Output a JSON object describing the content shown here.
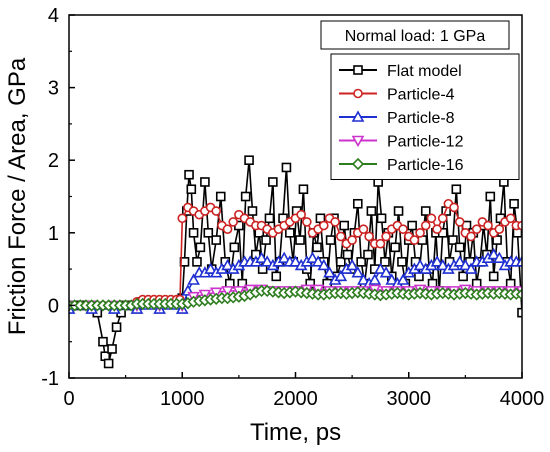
{
  "chart_data": {
    "type": "line",
    "title": "",
    "annotation": "Normal load: 1 GPa",
    "xlabel": "Time, ps",
    "ylabel": "Friction Force / Area, GPa",
    "xlim": [
      0,
      4000
    ],
    "ylim": [
      -1,
      4
    ],
    "x_ticks": [
      "0",
      "1000",
      "2000",
      "3000",
      "4000"
    ],
    "y_ticks": [
      "-1",
      "0",
      "1",
      "2",
      "3",
      "4"
    ],
    "x_tick_values": [
      0,
      1000,
      2000,
      3000,
      4000
    ],
    "y_tick_values": [
      -1,
      0,
      1,
      2,
      3,
      4
    ],
    "grid": false,
    "legend_position": "top-right",
    "series": [
      {
        "name": "Flat model",
        "color": "#000000",
        "marker": "square",
        "x": [
          0,
          50,
          100,
          150,
          200,
          250,
          300,
          320,
          350,
          380,
          420,
          460,
          500,
          550,
          600,
          650,
          700,
          750,
          800,
          850,
          900,
          950,
          980,
          1000,
          1020,
          1040,
          1060,
          1080,
          1100,
          1130,
          1160,
          1200,
          1230,
          1260,
          1300,
          1340,
          1380,
          1420,
          1460,
          1500,
          1530,
          1560,
          1590,
          1620,
          1650,
          1680,
          1710,
          1740,
          1770,
          1800,
          1830,
          1860,
          1890,
          1920,
          1950,
          1980,
          2010,
          2040,
          2070,
          2100,
          2130,
          2160,
          2190,
          2220,
          2250,
          2280,
          2310,
          2340,
          2370,
          2400,
          2430,
          2460,
          2490,
          2520,
          2550,
          2580,
          2610,
          2640,
          2670,
          2700,
          2730,
          2760,
          2790,
          2820,
          2850,
          2880,
          2910,
          2940,
          2970,
          3000,
          3030,
          3060,
          3090,
          3120,
          3150,
          3180,
          3210,
          3240,
          3270,
          3300,
          3330,
          3360,
          3390,
          3420,
          3450,
          3480,
          3510,
          3540,
          3570,
          3600,
          3630,
          3660,
          3690,
          3720,
          3750,
          3780,
          3810,
          3840,
          3870,
          3900,
          3930,
          3960,
          4000
        ],
        "values": [
          0,
          0,
          0,
          0,
          0,
          -0.1,
          -0.5,
          -0.7,
          -0.8,
          -0.6,
          -0.3,
          -0.1,
          0,
          0,
          0,
          0.05,
          0.05,
          0.05,
          0.05,
          0.05,
          0.05,
          0.05,
          0.05,
          0.1,
          0.6,
          1.3,
          1.8,
          1.6,
          1.0,
          0.6,
          0.8,
          1.7,
          1.0,
          0.5,
          0.9,
          1.5,
          0.6,
          0.3,
          0.8,
          1.1,
          0.3,
          1.5,
          2.0,
          1.3,
          0.7,
          1.0,
          0.5,
          0.9,
          1.2,
          1.7,
          0.4,
          0.6,
          1.2,
          1.9,
          1.0,
          0.6,
          1.3,
          0.9,
          1.6,
          0.5,
          0.3,
          1.0,
          0.8,
          1.2,
          0.6,
          0.3,
          0.9,
          1.2,
          0.4,
          0.6,
          1.1,
          0.7,
          0.5,
          1.0,
          1.4,
          0.6,
          0.3,
          0.7,
          1.3,
          0.5,
          1.7,
          1.2,
          0.6,
          1.0,
          0.4,
          0.8,
          1.3,
          0.6,
          0.3,
          0.9,
          1.1,
          0.6,
          0.4,
          0.9,
          1.3,
          0.5,
          0.3,
          1.0,
          0.2,
          1.0,
          1.3,
          0.6,
          0.9,
          1.6,
          0.8,
          0.4,
          1.1,
          0.6,
          1.0,
          0.3,
          0.6,
          1.1,
          0.7,
          1.5,
          0.4,
          0.9,
          1.2,
          1.7,
          0.6,
          0.3,
          1.4,
          1.0,
          -0.1
        ]
      },
      {
        "name": "Particle-4",
        "color": "#cc2222",
        "marker": "circle",
        "x": [
          0,
          100,
          200,
          300,
          400,
          500,
          600,
          650,
          700,
          750,
          800,
          850,
          900,
          950,
          980,
          1000,
          1050,
          1100,
          1150,
          1200,
          1250,
          1300,
          1350,
          1400,
          1450,
          1500,
          1550,
          1600,
          1650,
          1700,
          1750,
          1800,
          1850,
          1900,
          1950,
          2000,
          2050,
          2100,
          2150,
          2200,
          2250,
          2300,
          2350,
          2400,
          2450,
          2500,
          2550,
          2600,
          2650,
          2700,
          2750,
          2800,
          2850,
          2900,
          2950,
          3000,
          3050,
          3100,
          3150,
          3200,
          3250,
          3300,
          3350,
          3400,
          3450,
          3500,
          3550,
          3600,
          3650,
          3700,
          3750,
          3800,
          3850,
          3900,
          3950,
          4000
        ],
        "values": [
          0,
          0,
          0,
          0,
          0,
          0,
          0.05,
          0.08,
          0.08,
          0.08,
          0.08,
          0.08,
          0.08,
          0.08,
          0.08,
          1.2,
          1.35,
          1.3,
          1.25,
          1.3,
          1.35,
          1.3,
          1.1,
          1.05,
          1.15,
          1.25,
          1.2,
          1.15,
          1.1,
          1.1,
          1.05,
          1.0,
          1.05,
          1.1,
          1.15,
          1.2,
          1.25,
          1.15,
          1.0,
          1.05,
          1.1,
          1.2,
          1.15,
          0.95,
          0.85,
          0.9,
          1.0,
          1.05,
          0.95,
          0.85,
          0.85,
          0.95,
          1.05,
          1.1,
          1.05,
          0.95,
          0.9,
          1.0,
          1.1,
          1.2,
          1.05,
          1.2,
          1.4,
          1.35,
          1.15,
          1.0,
          0.95,
          1.05,
          1.15,
          1.1,
          1.0,
          1.05,
          1.15,
          1.2,
          1.1,
          1.1
        ]
      },
      {
        "name": "Particle-8",
        "color": "#1f2fd1",
        "marker": "triangle-up",
        "x": [
          0,
          200,
          400,
          600,
          800,
          1000,
          1050,
          1100,
          1150,
          1200,
          1250,
          1300,
          1350,
          1400,
          1450,
          1500,
          1550,
          1600,
          1650,
          1700,
          1750,
          1800,
          1850,
          1900,
          1950,
          2000,
          2050,
          2100,
          2150,
          2200,
          2250,
          2300,
          2350,
          2400,
          2450,
          2500,
          2550,
          2600,
          2650,
          2700,
          2750,
          2800,
          2850,
          2900,
          2950,
          3000,
          3050,
          3100,
          3150,
          3200,
          3250,
          3300,
          3350,
          3400,
          3450,
          3500,
          3550,
          3600,
          3650,
          3700,
          3750,
          3800,
          3850,
          3900,
          3950,
          4000
        ],
        "values": [
          -0.05,
          -0.05,
          -0.05,
          -0.05,
          -0.05,
          -0.05,
          0.2,
          0.35,
          0.45,
          0.45,
          0.5,
          0.45,
          0.5,
          0.55,
          0.5,
          0.55,
          0.6,
          0.6,
          0.6,
          0.65,
          0.6,
          0.55,
          0.6,
          0.65,
          0.6,
          0.6,
          0.55,
          0.6,
          0.65,
          0.6,
          0.55,
          0.45,
          0.35,
          0.4,
          0.5,
          0.55,
          0.45,
          0.35,
          0.3,
          0.35,
          0.5,
          0.45,
          0.35,
          0.3,
          0.35,
          0.45,
          0.5,
          0.55,
          0.5,
          0.55,
          0.6,
          0.55,
          0.5,
          0.55,
          0.6,
          0.55,
          0.5,
          0.6,
          0.6,
          0.65,
          0.7,
          0.65,
          0.55,
          0.6,
          0.6,
          0.6
        ]
      },
      {
        "name": "Particle-12",
        "color": "#cc33cc",
        "marker": "triangle-down",
        "x": [
          0,
          200,
          400,
          600,
          800,
          1000,
          1100,
          1200,
          1300,
          1400,
          1500,
          1600,
          1700,
          1800,
          1900,
          2000,
          2100,
          2200,
          2300,
          2400,
          2500,
          2600,
          2700,
          2800,
          2900,
          3000,
          3100,
          3200,
          3300,
          3400,
          3500,
          3600,
          3700,
          3800,
          3900,
          4000
        ],
        "values": [
          0,
          0,
          0,
          0,
          0,
          0,
          0.12,
          0.15,
          0.18,
          0.2,
          0.2,
          0.22,
          0.22,
          0.2,
          0.2,
          0.2,
          0.22,
          0.22,
          0.2,
          0.2,
          0.2,
          0.2,
          0.22,
          0.2,
          0.2,
          0.2,
          0.22,
          0.2,
          0.2,
          0.2,
          0.22,
          0.2,
          0.2,
          0.2,
          0.2,
          0.2
        ]
      },
      {
        "name": "Particle-16",
        "color": "#2e7d1f",
        "marker": "diamond",
        "x": [
          0,
          50,
          100,
          150,
          200,
          250,
          300,
          350,
          400,
          450,
          500,
          550,
          600,
          650,
          700,
          750,
          800,
          850,
          900,
          950,
          1000,
          1050,
          1100,
          1150,
          1200,
          1250,
          1300,
          1350,
          1400,
          1450,
          1500,
          1550,
          1600,
          1650,
          1700,
          1750,
          1800,
          1850,
          1900,
          1950,
          2000,
          2050,
          2100,
          2150,
          2200,
          2250,
          2300,
          2350,
          2400,
          2450,
          2500,
          2550,
          2600,
          2650,
          2700,
          2750,
          2800,
          2850,
          2900,
          2950,
          3000,
          3050,
          3100,
          3150,
          3200,
          3250,
          3300,
          3350,
          3400,
          3450,
          3500,
          3550,
          3600,
          3650,
          3700,
          3750,
          3800,
          3850,
          3900,
          3950,
          4000
        ],
        "values": [
          0,
          0,
          0,
          0,
          0,
          0,
          0,
          0,
          0,
          0,
          0,
          0,
          0.02,
          0.02,
          0.02,
          0.02,
          0.02,
          0.02,
          0.02,
          0.02,
          0.02,
          0.03,
          0.05,
          0.06,
          0.07,
          0.08,
          0.09,
          0.1,
          0.1,
          0.11,
          0.12,
          0.13,
          0.15,
          0.18,
          0.2,
          0.2,
          0.19,
          0.18,
          0.17,
          0.18,
          0.19,
          0.18,
          0.17,
          0.16,
          0.15,
          0.15,
          0.16,
          0.17,
          0.17,
          0.16,
          0.17,
          0.18,
          0.17,
          0.16,
          0.15,
          0.14,
          0.15,
          0.16,
          0.17,
          0.16,
          0.15,
          0.16,
          0.17,
          0.16,
          0.15,
          0.16,
          0.17,
          0.16,
          0.15,
          0.16,
          0.17,
          0.16,
          0.15,
          0.16,
          0.17,
          0.16,
          0.17,
          0.16,
          0.15,
          0.16,
          0.15
        ]
      }
    ]
  }
}
